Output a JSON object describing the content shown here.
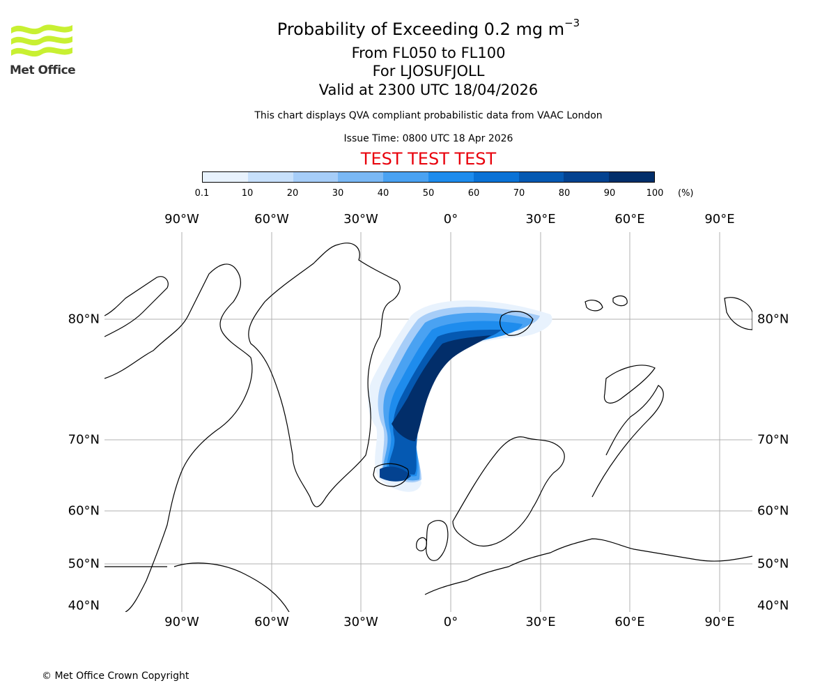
{
  "header": {
    "title": "Probability of Exceeding 0.2 mg m",
    "title_exponent": "−3",
    "level_range": "From FL050 to FL100",
    "location": "For LJOSUFJOLL",
    "valid_time": "Valid at 2300 UTC 18/04/2026",
    "description": "This chart displays QVA compliant probabilistic data from VAAC London",
    "issue_time": "Issue Time: 0800 UTC 18 Apr 2026",
    "test_banner": "TEST TEST TEST"
  },
  "logo": {
    "text": "Met Office",
    "colors": {
      "wave": "#c8f032",
      "text": "#333333"
    }
  },
  "colorbar": {
    "ticks": [
      "0.1",
      "10",
      "20",
      "30",
      "40",
      "50",
      "60",
      "70",
      "80",
      "90",
      "100"
    ],
    "unit": "(%)",
    "colors": [
      "#e8f2fd",
      "#c7e0fb",
      "#a6cdf8",
      "#7ab8f5",
      "#4aa2f2",
      "#1e8ced",
      "#0a72d6",
      "#0559b2",
      "#034290",
      "#022e6a"
    ]
  },
  "map": {
    "lon_labels": [
      "90°W",
      "60°W",
      "30°W",
      "0°",
      "30°E",
      "60°E",
      "90°E"
    ],
    "lat_labels": [
      "80°N",
      "70°N",
      "60°N",
      "50°N",
      "40°N"
    ]
  },
  "footer": {
    "copyright": "© Met Office Crown Copyright"
  }
}
